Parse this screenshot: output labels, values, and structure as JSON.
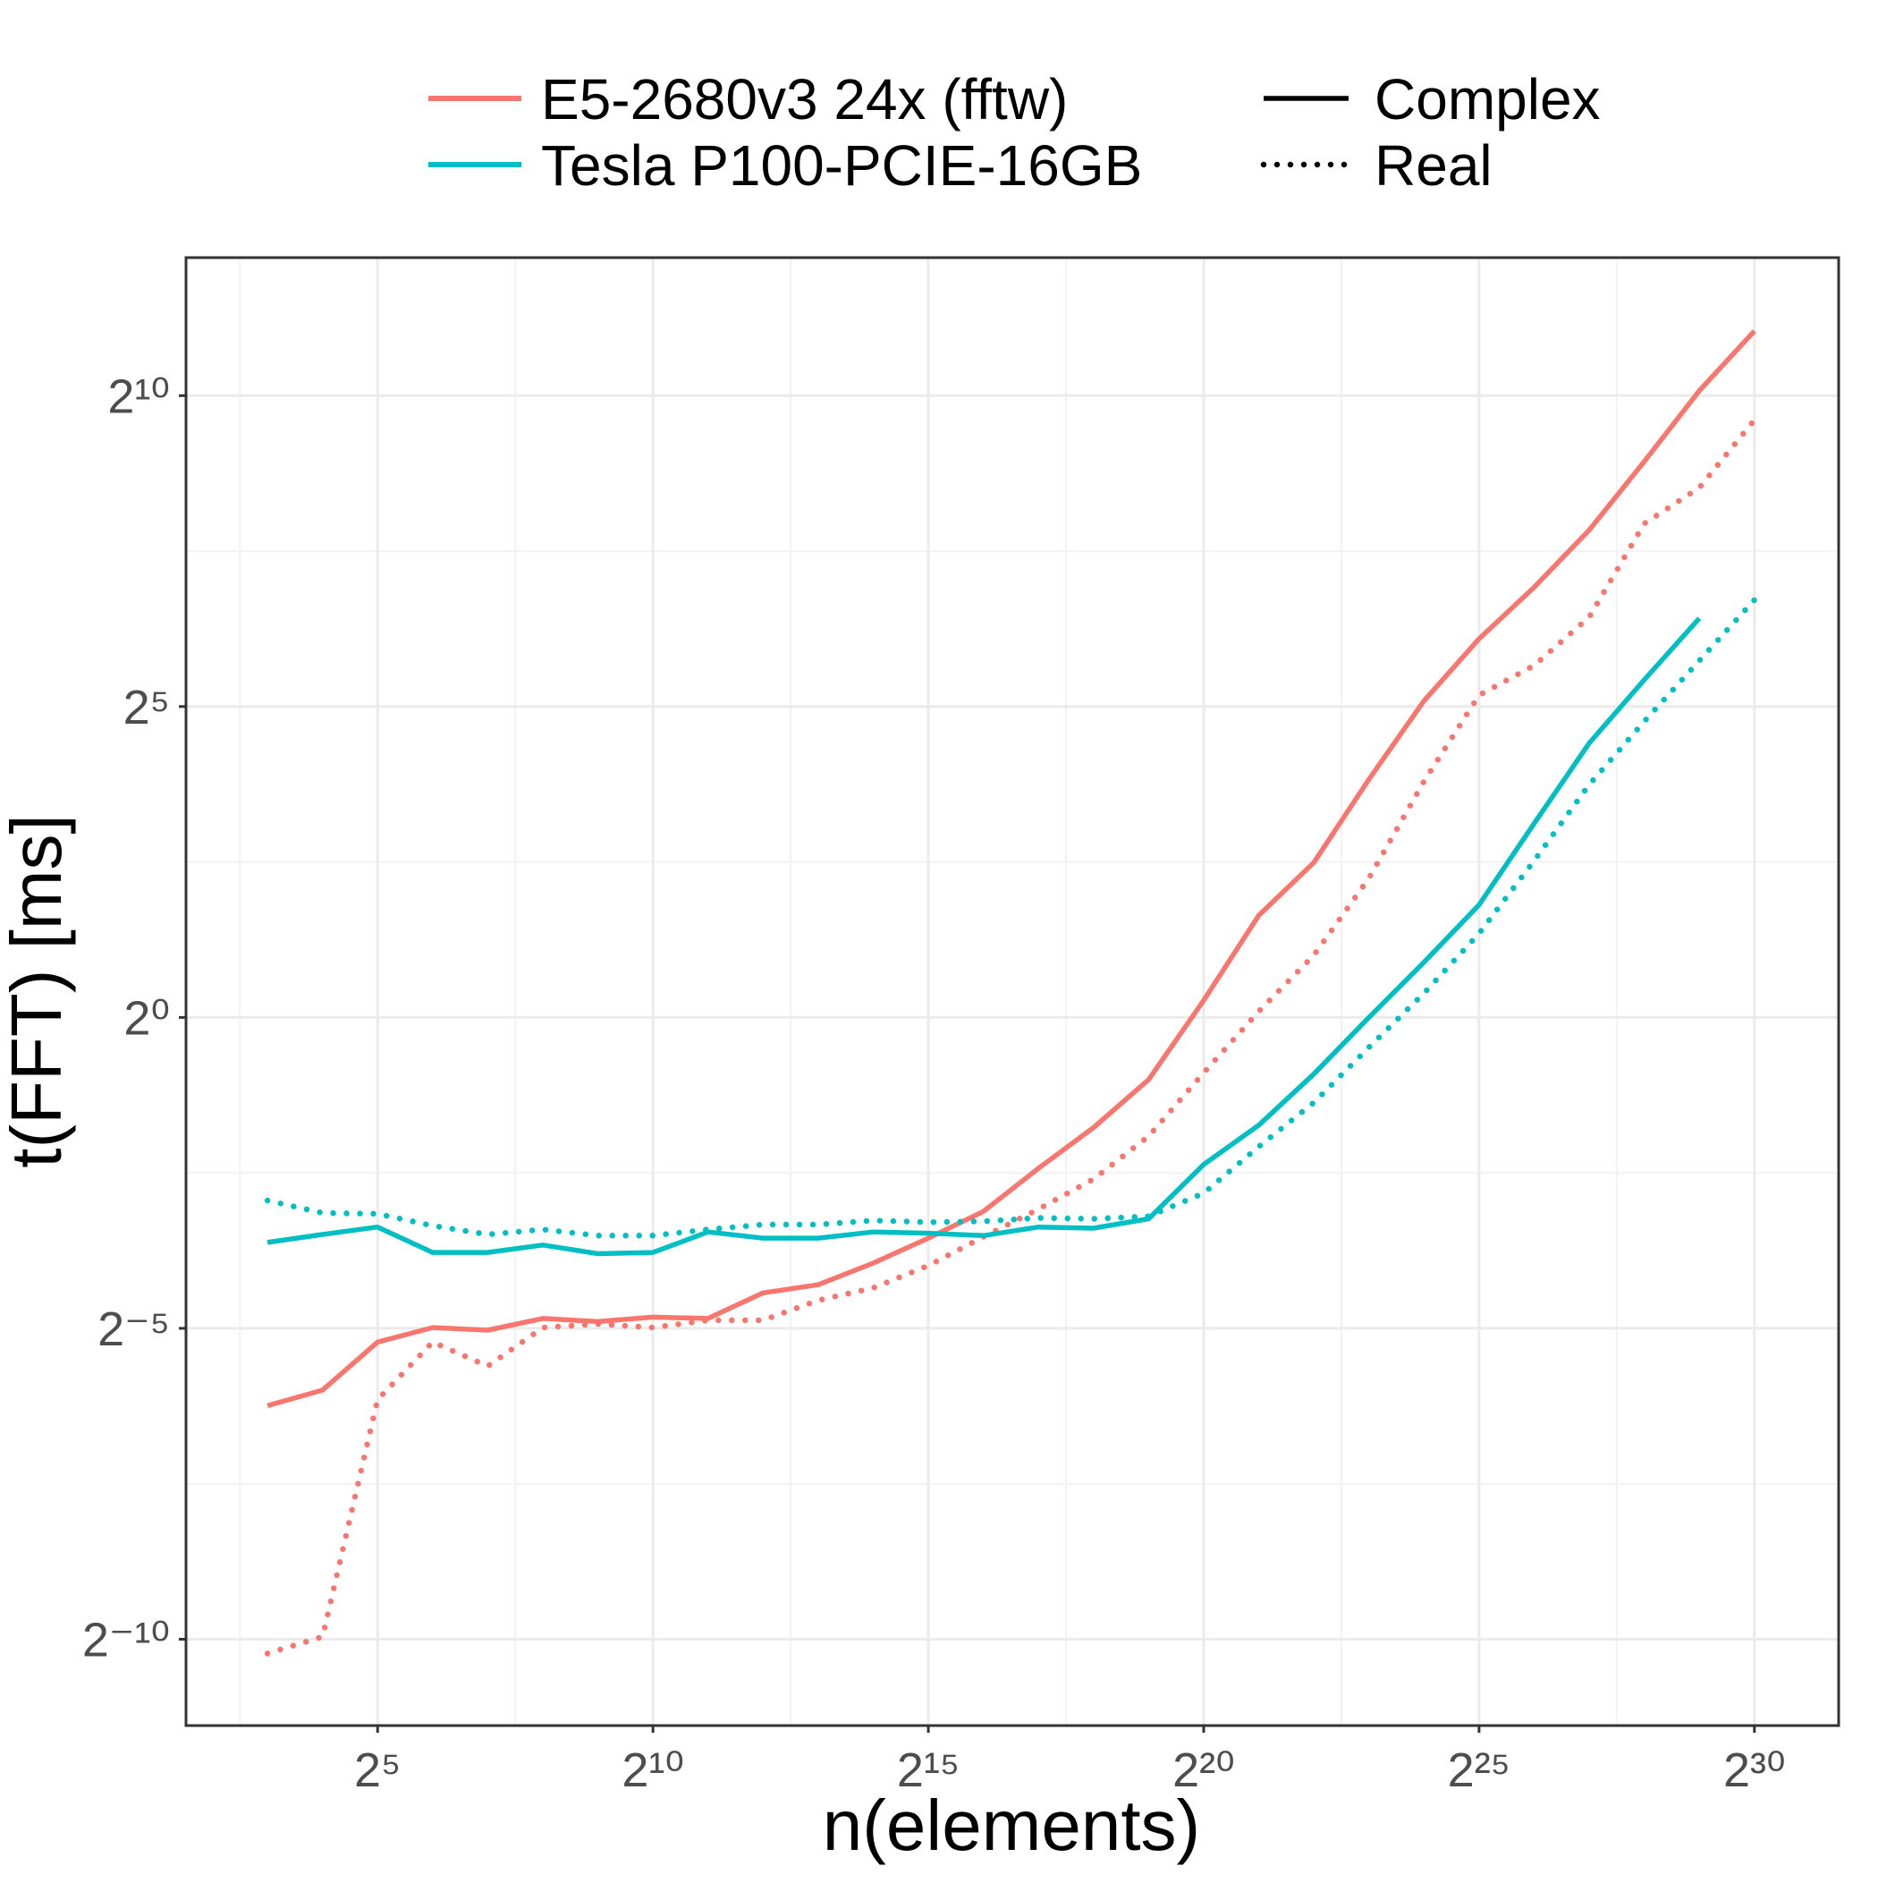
{
  "chart_data": {
    "type": "line",
    "x_label": "n(elements)",
    "y_label": "t(FFT) [ms]",
    "log_x": 2,
    "log_y": 2,
    "grid": true,
    "x": [
      8,
      16,
      32,
      64,
      128,
      256,
      512,
      1024,
      2048,
      4096,
      8192,
      16384,
      32768,
      65536,
      131072,
      262144,
      524288,
      1048576,
      2097152,
      4194304,
      8388608,
      16777216,
      33554432,
      67108864,
      134217728,
      268435456,
      536870912,
      1073741824
    ],
    "linetypes": [
      {
        "name": "Complex",
        "dash": "solid"
      },
      {
        "name": "Real",
        "dash": "dotted"
      }
    ],
    "series": [
      {
        "name": "E5-2680v3 24x (fftw)",
        "color": "#f8766d",
        "lines": [
          {
            "values": [
              0.0132,
              0.0157,
              0.0268,
              0.0315,
              0.0306,
              0.0349,
              0.0337,
              0.0354,
              0.0349,
              0.0464,
              0.0508,
              0.0647,
              0.0854,
              0.115,
              0.186,
              0.293,
              0.5,
              1.21,
              3.12,
              5.62,
              14.2,
              34.1,
              68.1,
              121,
              229,
              491,
              1082,
              2105
            ]
          },
          {
            "values": [
              0.000833,
              0.001004,
              0.0141,
              0.0268,
              0.0205,
              0.0315,
              0.0328,
              0.0315,
              0.0342,
              0.0342,
              0.0427,
              0.049,
              0.0629,
              0.0866,
              0.118,
              0.165,
              0.266,
              0.54,
              1.07,
              2.0,
              4.72,
              13.9,
              36.3,
              50.6,
              86.8,
              246,
              367,
              781
            ]
          }
        ]
      },
      {
        "name": "Tesla P100-PCIE-16GB",
        "color": "#00bfc4",
        "lines": [
          {
            "values": [
              0.0814,
              0.089,
              0.0967,
              0.0728,
              0.0728,
              0.0791,
              0.0718,
              0.0728,
              0.0915,
              0.0854,
              0.0854,
              0.0915,
              0.0902,
              0.0878,
              0.0967,
              0.0954,
              0.106,
              0.194,
              0.301,
              0.532,
              1.0,
              1.85,
              3.51,
              8.69,
              21.3,
              43.1,
              85.6,
              null
            ]
          },
          {
            "values": [
              0.13,
              0.113,
              0.112,
              0.0981,
              0.089,
              0.0941,
              0.0878,
              0.0878,
              0.0941,
              0.0994,
              0.0994,
              0.104,
              0.102,
              0.103,
              0.107,
              0.106,
              0.109,
              0.141,
              0.237,
              0.387,
              0.717,
              1.31,
              2.55,
              5.74,
              13.4,
              27.1,
              53.4,
              105
            ]
          }
        ]
      }
    ],
    "xlim": [
      2.87,
      3100000000
    ],
    "ylim": [
      0.000373,
      4770
    ],
    "xticks": [
      {
        "value": 32,
        "label": "2⁵"
      },
      {
        "value": 1024,
        "label": "2¹⁰"
      },
      {
        "value": 32768,
        "label": "2¹⁵"
      },
      {
        "value": 1048576,
        "label": "2²⁰"
      },
      {
        "value": 33554432,
        "label": "2²⁵"
      },
      {
        "value": 1073741824,
        "label": "2³⁰"
      }
    ],
    "yticks": [
      {
        "value": 0.0009765625,
        "label": "2⁻¹⁰"
      },
      {
        "value": 0.03125,
        "label": "2⁻⁵"
      },
      {
        "value": 1,
        "label": "2⁰"
      },
      {
        "value": 32,
        "label": "2⁵"
      },
      {
        "value": 1024,
        "label": "2¹⁰"
      }
    ]
  }
}
